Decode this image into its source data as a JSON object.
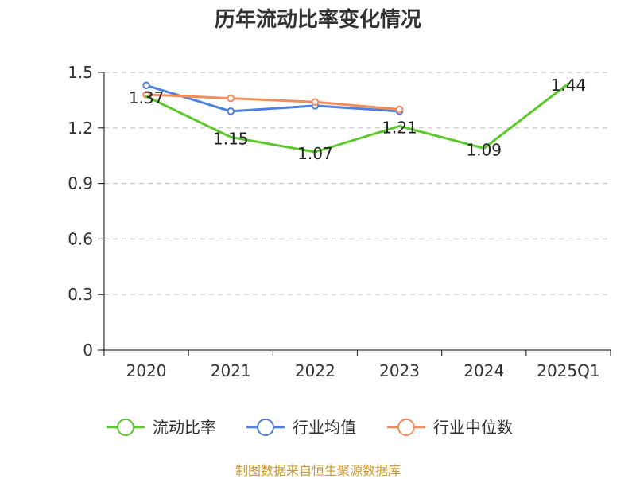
{
  "chart_data": {
    "type": "line",
    "title": "历年流动比率变化情况",
    "categories": [
      "2020",
      "2021",
      "2022",
      "2023",
      "2024",
      "2025Q1"
    ],
    "ylim": [
      0,
      1.5
    ],
    "yticks": [
      "0",
      "0.3",
      "0.6",
      "0.9",
      "1.2",
      "1.5"
    ],
    "ytick_values": [
      0,
      0.3,
      0.6,
      0.9,
      1.2,
      1.5
    ],
    "grid": true,
    "legend_position": "bottom",
    "series": [
      {
        "name": "流动比率",
        "color": "#5cc72a",
        "values": [
          1.37,
          1.15,
          1.07,
          1.21,
          1.09,
          1.44
        ],
        "labels": [
          "1.37",
          "1.15",
          "1.07",
          "1.21",
          "1.09",
          "1.44"
        ],
        "show_markers": false
      },
      {
        "name": "行业均值",
        "color": "#4f7fe0",
        "values": [
          1.43,
          1.29,
          1.32,
          1.29,
          null,
          null
        ],
        "show_markers": true
      },
      {
        "name": "行业中位数",
        "color": "#f28e5c",
        "values": [
          1.38,
          1.36,
          1.34,
          1.3,
          null,
          null
        ],
        "show_markers": true
      }
    ]
  },
  "source": "制图数据来自恒生聚源数据库"
}
